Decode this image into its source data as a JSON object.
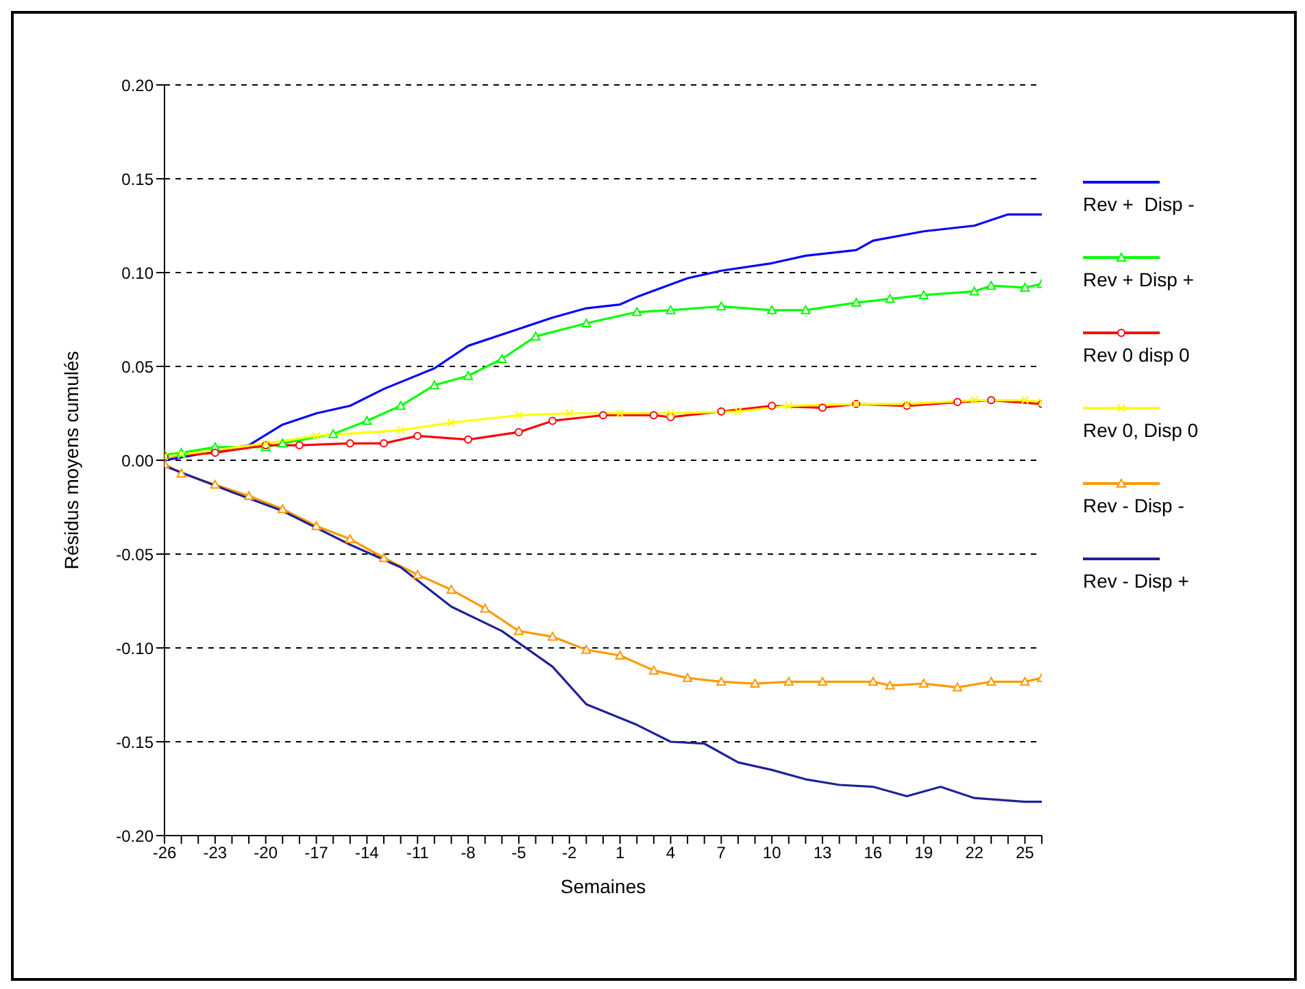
{
  "chart_data": {
    "type": "line",
    "xlabel": "Semaines",
    "ylabel": "Résidus moyens cumulés",
    "xlim": [
      -26,
      26
    ],
    "xticks": [
      {
        "value": -26,
        "label": "-26"
      },
      {
        "value": -25,
        "label": null
      },
      {
        "value": -24,
        "label": null
      },
      {
        "value": -23,
        "label": "-23"
      },
      {
        "value": -22,
        "label": null
      },
      {
        "value": -21,
        "label": null
      },
      {
        "value": -20,
        "label": "-20"
      },
      {
        "value": -19,
        "label": null
      },
      {
        "value": -18,
        "label": null
      },
      {
        "value": -17,
        "label": "-17"
      },
      {
        "value": -16,
        "label": null
      },
      {
        "value": -15,
        "label": null
      },
      {
        "value": -14,
        "label": "-14"
      },
      {
        "value": -13,
        "label": null
      },
      {
        "value": -12,
        "label": null
      },
      {
        "value": -11,
        "label": "-11"
      },
      {
        "value": -10,
        "label": null
      },
      {
        "value": -9,
        "label": null
      },
      {
        "value": -8,
        "label": "-8"
      },
      {
        "value": -7,
        "label": null
      },
      {
        "value": -6,
        "label": null
      },
      {
        "value": -5,
        "label": "-5"
      },
      {
        "value": -4,
        "label": null
      },
      {
        "value": -3,
        "label": null
      },
      {
        "value": -2,
        "label": "-2"
      },
      {
        "value": -1,
        "label": null
      },
      {
        "value": 0,
        "label": null
      },
      {
        "value": 1,
        "label": "1"
      },
      {
        "value": 2,
        "label": null
      },
      {
        "value": 3,
        "label": null
      },
      {
        "value": 4,
        "label": "4"
      },
      {
        "value": 5,
        "label": null
      },
      {
        "value": 6,
        "label": null
      },
      {
        "value": 7,
        "label": "7"
      },
      {
        "value": 8,
        "label": null
      },
      {
        "value": 9,
        "label": null
      },
      {
        "value": 10,
        "label": "10"
      },
      {
        "value": 11,
        "label": null
      },
      {
        "value": 12,
        "label": null
      },
      {
        "value": 13,
        "label": "13"
      },
      {
        "value": 14,
        "label": null
      },
      {
        "value": 15,
        "label": null
      },
      {
        "value": 16,
        "label": "16"
      },
      {
        "value": 17,
        "label": null
      },
      {
        "value": 18,
        "label": null
      },
      {
        "value": 19,
        "label": "19"
      },
      {
        "value": 20,
        "label": null
      },
      {
        "value": 21,
        "label": null
      },
      {
        "value": 22,
        "label": "22"
      },
      {
        "value": 23,
        "label": null
      },
      {
        "value": 24,
        "label": null
      },
      {
        "value": 25,
        "label": "25"
      },
      {
        "value": 26,
        "label": null
      }
    ],
    "ylim": [
      -0.2,
      0.2
    ],
    "yticks": [
      {
        "value": -0.2,
        "label": "-0.20"
      },
      {
        "value": -0.15,
        "label": "-0.15"
      },
      {
        "value": -0.1,
        "label": "-0.10"
      },
      {
        "value": -0.05,
        "label": "-0.05"
      },
      {
        "value": 0,
        "label": "0.00"
      },
      {
        "value": 0.05,
        "label": "0.05"
      },
      {
        "value": 0.1,
        "label": "0.10"
      },
      {
        "value": 0.15,
        "label": "0.15"
      },
      {
        "value": 0.2,
        "label": "0.20"
      }
    ],
    "grid": "y",
    "legend": "right",
    "line_style": "solid",
    "series": [
      {
        "name": "Rev +  Disp -",
        "color": "#0000ff",
        "marker": "none",
        "x": [
          -26,
          -21,
          -19,
          -17,
          -15,
          -13,
          -10,
          -8,
          -3,
          -1,
          1,
          2,
          5,
          7,
          10,
          12,
          15,
          16,
          19,
          22,
          24,
          26
        ],
        "values": [
          0,
          0.008,
          0.019,
          0.025,
          0.029,
          0.038,
          0.049,
          0.061,
          0.076,
          0.081,
          0.083,
          0.087,
          0.097,
          0.101,
          0.105,
          0.109,
          0.112,
          0.117,
          0.122,
          0.125,
          0.131,
          0.131
        ]
      },
      {
        "name": "Rev + Disp +",
        "color": "#00ff00",
        "marker": "triangle",
        "x": [
          -26,
          -25,
          -23,
          -20,
          -19,
          -16,
          -14,
          -12,
          -10,
          -8,
          -6,
          -4,
          -1,
          2,
          4,
          7,
          10,
          12,
          15,
          17,
          19,
          22,
          23,
          25,
          26
        ],
        "values": [
          0.003,
          0.004,
          0.007,
          0.007,
          0.009,
          0.014,
          0.021,
          0.029,
          0.04,
          0.045,
          0.054,
          0.066,
          0.073,
          0.079,
          0.08,
          0.082,
          0.08,
          0.08,
          0.084,
          0.086,
          0.088,
          0.09,
          0.093,
          0.092,
          0.094
        ]
      },
      {
        "name": "Rev 0 disp 0",
        "color": "#ff0000",
        "marker": "circle",
        "x": [
          -26,
          -23,
          -20,
          -18,
          -15,
          -13,
          -11,
          -8,
          -5,
          -3,
          0,
          3,
          4,
          7,
          10,
          13,
          15,
          18,
          21,
          23,
          26
        ],
        "values": [
          0.002,
          0.004,
          0.008,
          0.008,
          0.009,
          0.009,
          0.013,
          0.011,
          0.015,
          0.021,
          0.024,
          0.024,
          0.023,
          0.026,
          0.029,
          0.028,
          0.03,
          0.029,
          0.031,
          0.032,
          0.03
        ]
      },
      {
        "name": "Rev 0, Disp 0",
        "color": "#ffff00",
        "marker": "cross",
        "x": [
          -26,
          -25,
          -20,
          -17,
          -12,
          -9,
          -5,
          -2,
          1,
          4,
          8,
          11,
          15,
          18,
          22,
          25,
          26
        ],
        "values": [
          0.002,
          0.003,
          0.009,
          0.013,
          0.016,
          0.02,
          0.024,
          0.025,
          0.025,
          0.025,
          0.026,
          0.029,
          0.03,
          0.03,
          0.032,
          0.032,
          0.031
        ]
      },
      {
        "name": "Rev - Disp -",
        "color": "#ff9900",
        "marker": "triangle",
        "x": [
          -26,
          -25,
          -23,
          -21,
          -19,
          -17,
          -15,
          -13,
          -11,
          -9,
          -7,
          -5,
          -3,
          -1,
          1,
          3,
          5,
          7,
          9,
          11,
          13,
          16,
          17,
          19,
          21,
          23,
          25,
          26
        ],
        "values": [
          -0.002,
          -0.007,
          -0.013,
          -0.019,
          -0.026,
          -0.035,
          -0.042,
          -0.052,
          -0.061,
          -0.069,
          -0.079,
          -0.091,
          -0.094,
          -0.101,
          -0.104,
          -0.112,
          -0.116,
          -0.118,
          -0.119,
          -0.118,
          -0.118,
          -0.118,
          -0.12,
          -0.119,
          -0.121,
          -0.118,
          -0.118,
          -0.116
        ]
      },
      {
        "name": "Rev - Disp +",
        "color": "#20209a",
        "marker": "none",
        "x": [
          -26,
          -22,
          -19,
          -15,
          -12,
          -9,
          -6,
          -3,
          -1,
          2,
          4,
          6,
          8,
          10,
          12,
          14,
          16,
          18,
          20,
          22,
          25,
          26
        ],
        "values": [
          -0.003,
          -0.017,
          -0.027,
          -0.045,
          -0.057,
          -0.078,
          -0.091,
          -0.11,
          -0.13,
          -0.141,
          -0.15,
          -0.151,
          -0.161,
          -0.165,
          -0.17,
          -0.173,
          -0.174,
          -0.179,
          -0.174,
          -0.18,
          -0.182,
          -0.182
        ]
      }
    ]
  }
}
